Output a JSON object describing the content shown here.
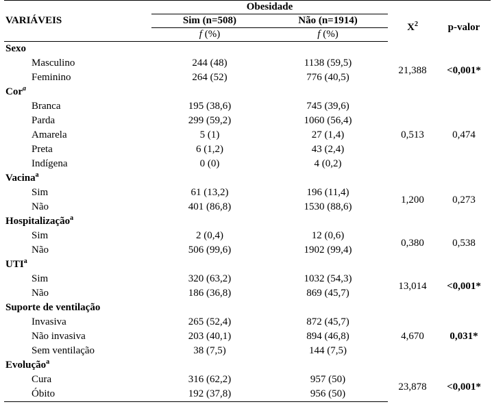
{
  "header": {
    "group_label": "Obesidade",
    "variables_label": "VARIÁVEIS",
    "col_sim": "Sim (n=508)",
    "col_nao": "Não (n=1914)",
    "col_x2": "X",
    "col_x2_sup": "2",
    "col_p": "p-valor",
    "freq_label_f": "f",
    "freq_label_pct": "(%)"
  },
  "sections": [
    {
      "name": "Sexo",
      "sup": "",
      "x2": "21,388",
      "p": "<0,001*",
      "p_bold": true,
      "rows": [
        {
          "label": "Masculino",
          "sim": "244 (48)",
          "nao": "1138 (59,5)"
        },
        {
          "label": "Feminino",
          "sim": "264 (52)",
          "nao": "776 (40,5)"
        }
      ]
    },
    {
      "name": "Cor",
      "sup": "a",
      "x2": "0,513",
      "p": "0,474",
      "p_bold": false,
      "rows": [
        {
          "label": "Branca",
          "sim": "195 (38,6)",
          "nao": "745 (39,6)"
        },
        {
          "label": "Parda",
          "sim": "299 (59,2)",
          "nao": "1060 (56,4)"
        },
        {
          "label": "Amarela",
          "sim": "5 (1)",
          "nao": "27 (1,4)"
        },
        {
          "label": "Preta",
          "sim": "6 (1,2)",
          "nao": "43 (2,4)"
        },
        {
          "label": "Indígena",
          "sim": "0 (0)",
          "nao": "4 (0,2)"
        }
      ]
    },
    {
      "name": "Vacina",
      "sup": "a",
      "x2": "1,200",
      "p": "0,273",
      "p_bold": false,
      "rows": [
        {
          "label": "Sim",
          "sim": "61 (13,2)",
          "nao": "196 (11,4)"
        },
        {
          "label": "Não",
          "sim": "401 (86,8)",
          "nao": "1530 (88,6)"
        }
      ]
    },
    {
      "name": "Hospitalização",
      "sup": "a",
      "x2": "0,380",
      "p": "0,538",
      "p_bold": false,
      "rows": [
        {
          "label": "Sim",
          "sim": "2 (0,4)",
          "nao": "12 (0,6)"
        },
        {
          "label": "Não",
          "sim": "506 (99,6)",
          "nao": "1902 (99,4)"
        }
      ]
    },
    {
      "name": "UTI",
      "sup": "a",
      "x2": "13,014",
      "p": "<0,001*",
      "p_bold": true,
      "rows": [
        {
          "label": "Sim",
          "sim": "320 (63,2)",
          "nao": "1032 (54,3)"
        },
        {
          "label": "Não",
          "sim": "186 (36,8)",
          "nao": "869 (45,7)"
        }
      ]
    },
    {
      "name": "Suporte de ventilação",
      "sup": "",
      "x2": "4,670",
      "p": "0,031*",
      "p_bold": true,
      "rows": [
        {
          "label": "Invasiva",
          "sim": "265 (52,4)",
          "nao": "872 (45,7)"
        },
        {
          "label": "Não invasiva",
          "sim": "203 (40,1)",
          "nao": "894 (46,8)"
        },
        {
          "label": "Sem ventilação",
          "sim": "38 (7,5)",
          "nao": "144 (7,5)"
        }
      ]
    },
    {
      "name": "Evolução",
      "sup": "a",
      "x2": "23,878",
      "p": "<0,001*",
      "p_bold": true,
      "rows": [
        {
          "label": "Cura",
          "sim": "316 (62,2)",
          "nao": "957 (50)"
        },
        {
          "label": "Óbito",
          "sim": "192 (37,8)",
          "nao": "956 (50)"
        }
      ]
    }
  ]
}
